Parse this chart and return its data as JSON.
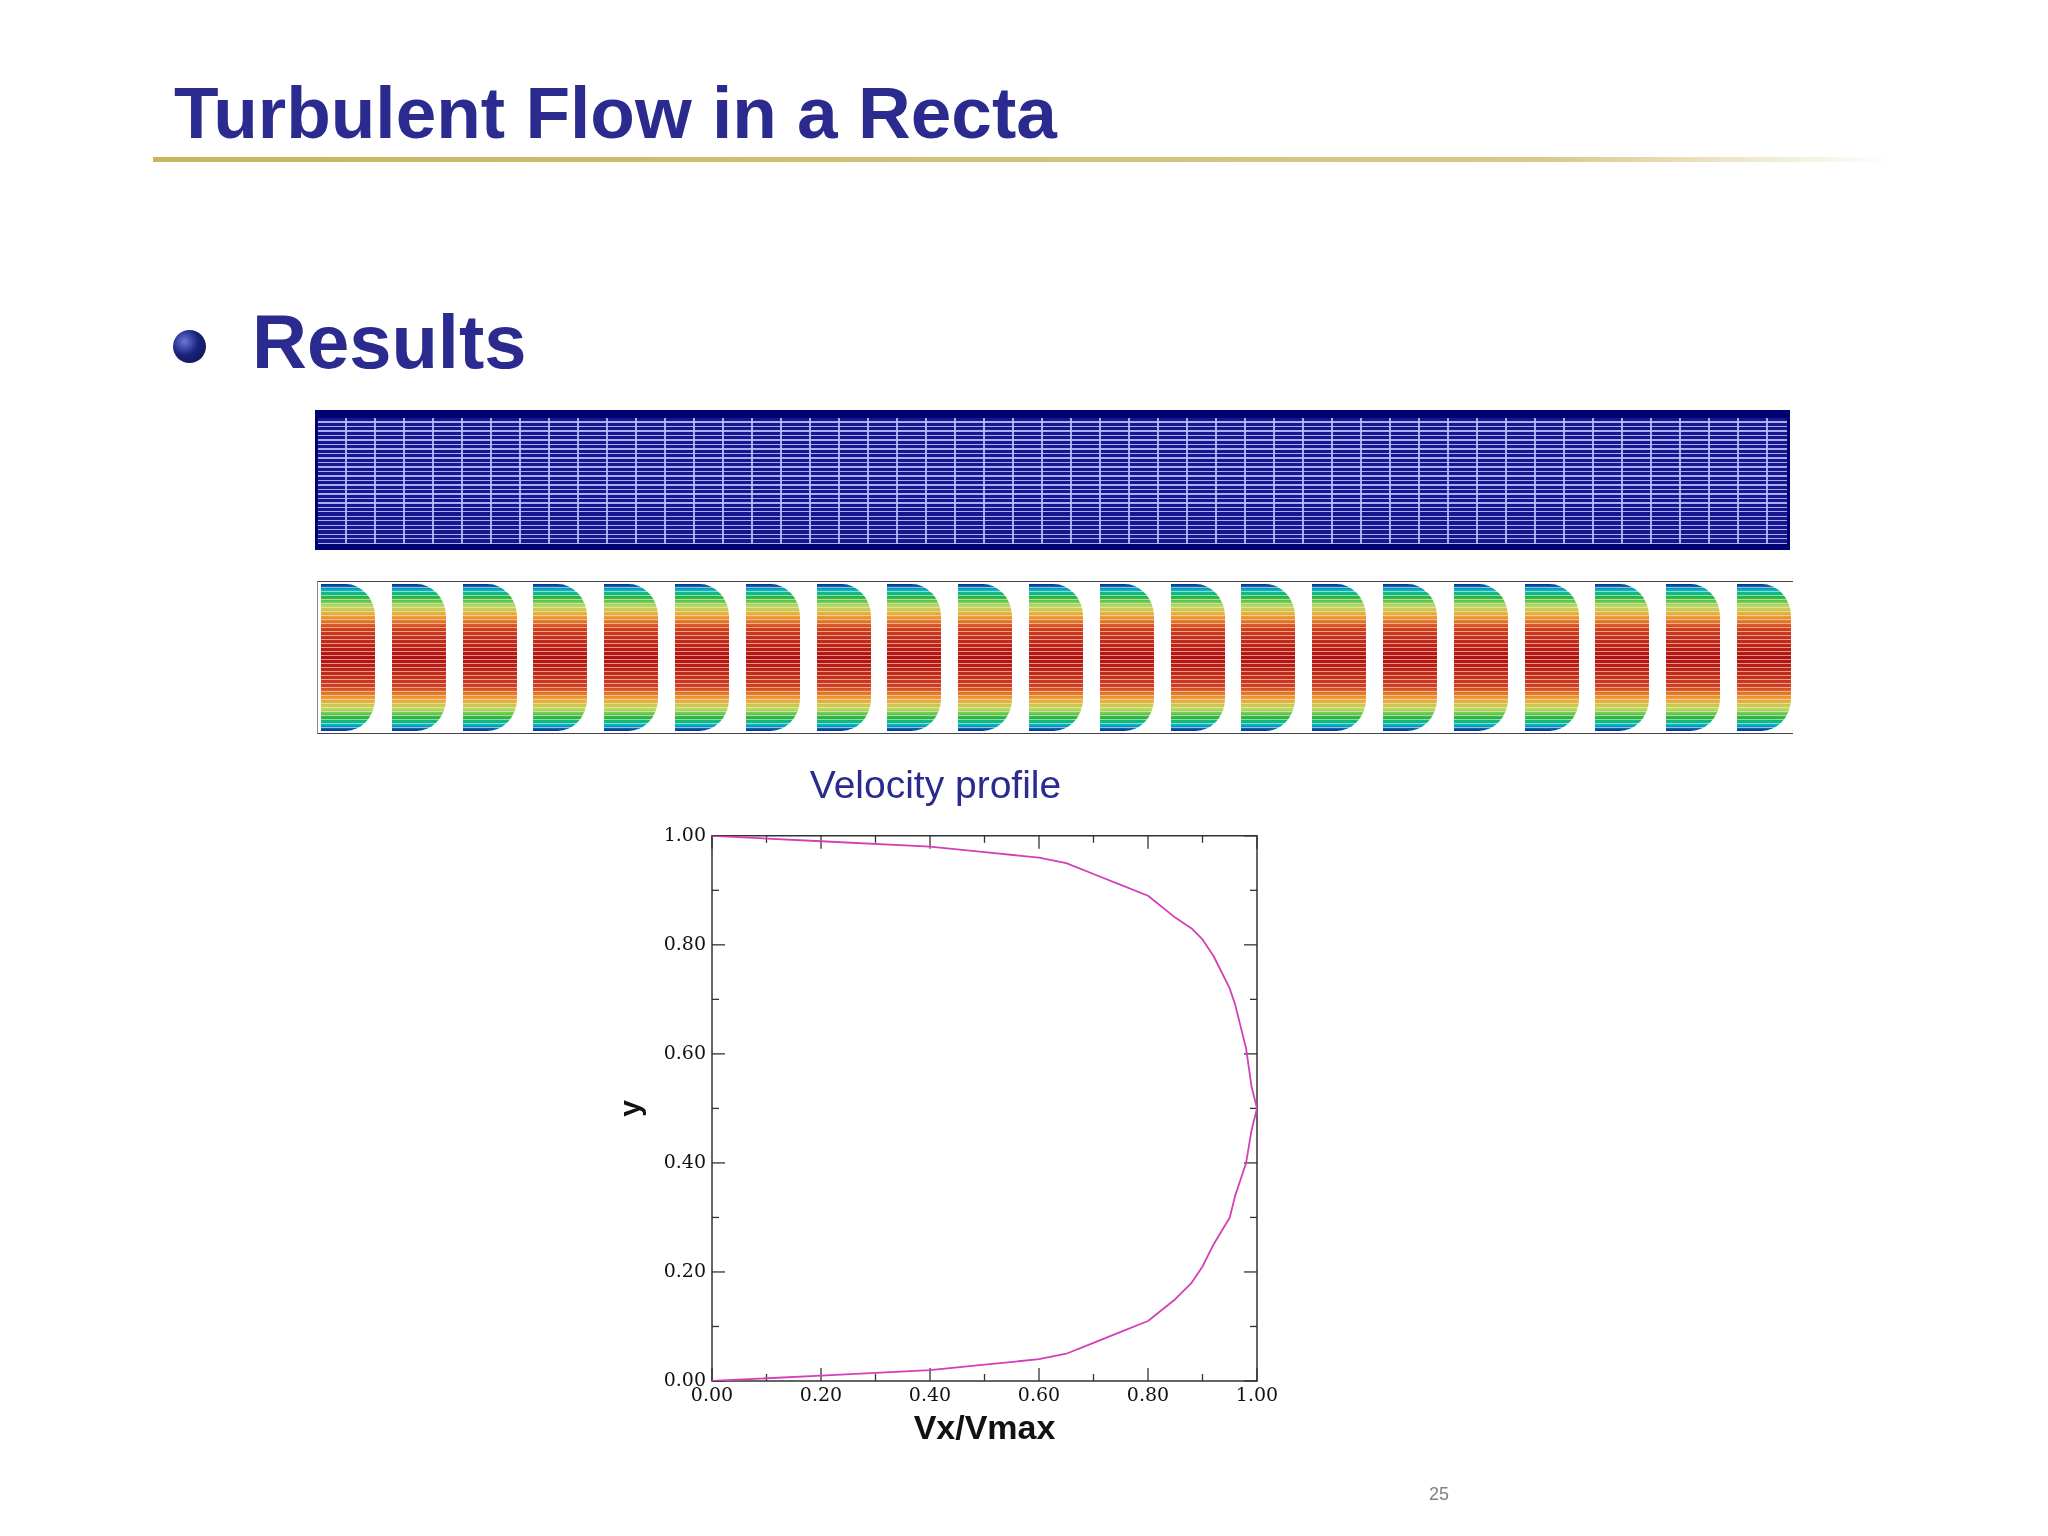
{
  "chart_data": {
    "type": "line",
    "title": "Velocity profile",
    "xlabel": "Vx/Vmax",
    "ylabel": "y",
    "x": [
      0,
      0.2,
      0.4,
      0.5,
      0.6,
      0.65,
      0.7,
      0.75,
      0.8,
      0.85,
      0.88,
      0.9,
      0.92,
      0.95,
      0.96,
      0.97,
      0.98,
      0.99,
      1.0,
      0.99,
      0.98,
      0.97,
      0.96,
      0.95,
      0.92,
      0.9,
      0.88,
      0.85,
      0.8,
      0.75,
      0.7,
      0.65,
      0.6,
      0.5,
      0.4,
      0.2,
      0
    ],
    "values": [
      0,
      0.01,
      0.02,
      0.03,
      0.04,
      0.05,
      0.07,
      0.09,
      0.11,
      0.15,
      0.18,
      0.21,
      0.25,
      0.3,
      0.34,
      0.37,
      0.4,
      0.46,
      0.5,
      0.54,
      0.61,
      0.65,
      0.69,
      0.72,
      0.78,
      0.81,
      0.83,
      0.85,
      0.89,
      0.91,
      0.93,
      0.95,
      0.96,
      0.97,
      0.98,
      0.99,
      1.0
    ],
    "color": "#d43fb8",
    "marker": "none",
    "line_style": "solid",
    "grid": false,
    "legend": false,
    "xlim": [
      0,
      1
    ],
    "ylim": [
      0,
      1
    ],
    "xticks": [
      {
        "value": 0,
        "label": "0.00"
      },
      {
        "value": 0.1,
        "label": null
      },
      {
        "value": 0.2,
        "label": "0.20"
      },
      {
        "value": 0.3,
        "label": null
      },
      {
        "value": 0.4,
        "label": "0.40"
      },
      {
        "value": 0.5,
        "label": null
      },
      {
        "value": 0.6,
        "label": "0.60"
      },
      {
        "value": 0.7,
        "label": null
      },
      {
        "value": 0.8,
        "label": "0.80"
      },
      {
        "value": 0.9,
        "label": null
      },
      {
        "value": 1,
        "label": "1.00"
      }
    ],
    "yticks": [
      {
        "value": 0,
        "label": "0.00"
      },
      {
        "value": 0.1,
        "label": null
      },
      {
        "value": 0.2,
        "label": "0.20"
      },
      {
        "value": 0.3,
        "label": null
      },
      {
        "value": 0.4,
        "label": "0.40"
      },
      {
        "value": 0.5,
        "label": null
      },
      {
        "value": 0.6,
        "label": "0.60"
      },
      {
        "value": 0.7,
        "label": null
      },
      {
        "value": 0.8,
        "label": "0.80"
      },
      {
        "value": 0.9,
        "label": null
      },
      {
        "value": 1,
        "label": "1.00"
      }
    ],
    "annotations": [
      "Turbulent Flow in a Recta",
      "Results",
      "25"
    ]
  }
}
